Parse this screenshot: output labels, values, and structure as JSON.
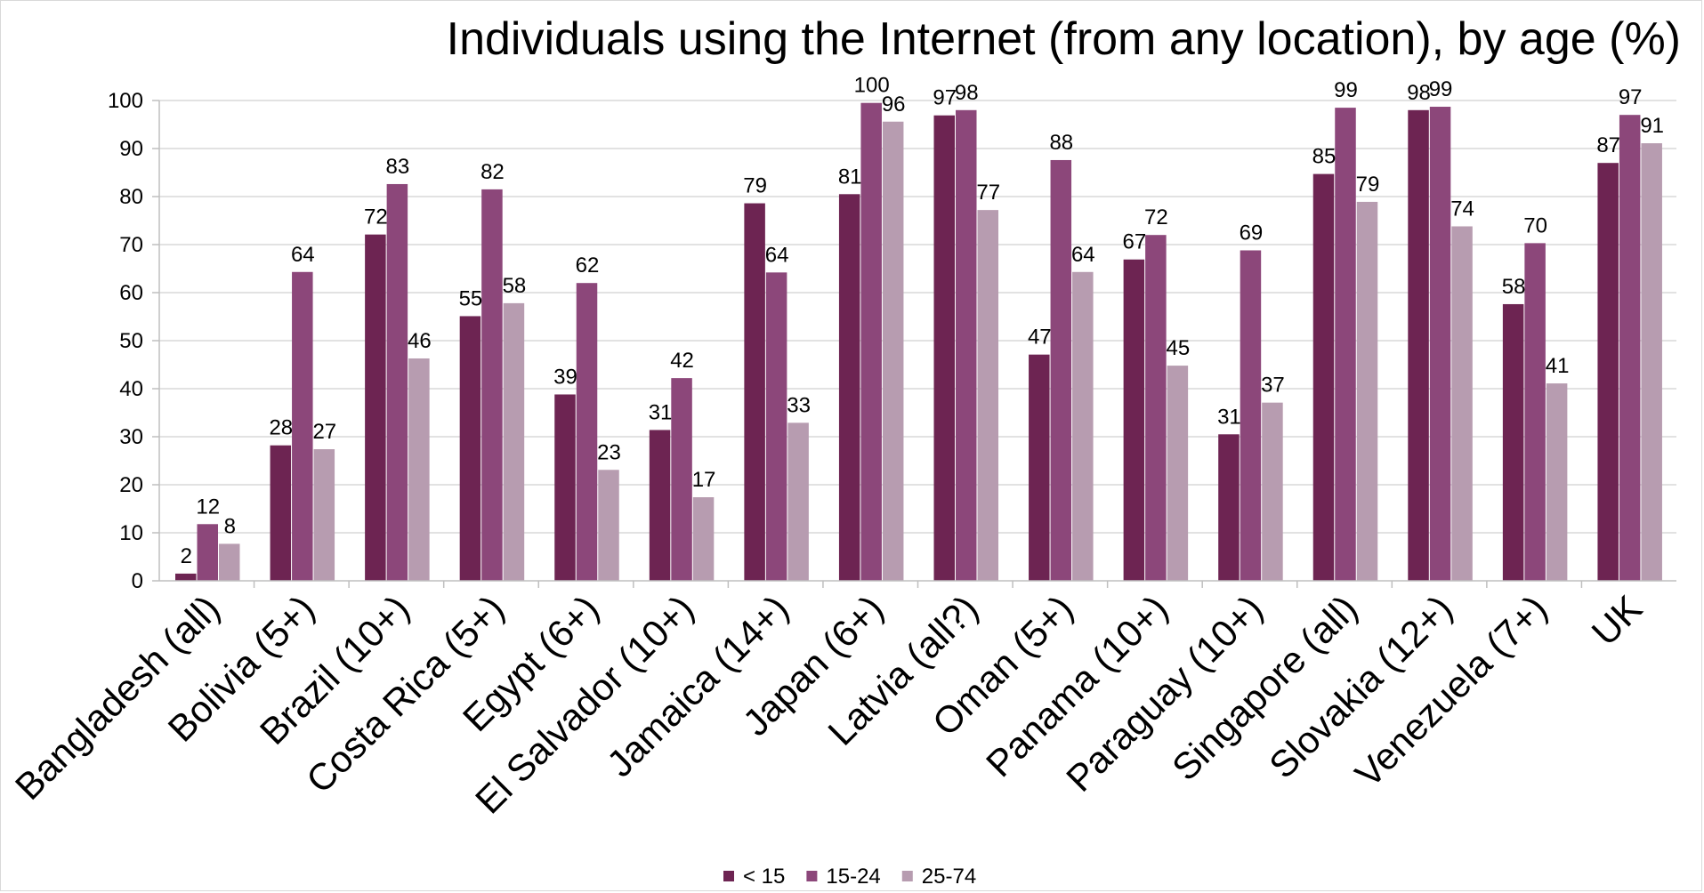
{
  "chart_data": {
    "type": "bar",
    "title": "Individuals using the Internet (from any location), by age (%)",
    "xlabel": "",
    "ylabel": "",
    "ylim": [
      0,
      100
    ],
    "yticks": [
      0,
      10,
      20,
      30,
      40,
      50,
      60,
      70,
      80,
      90,
      100
    ],
    "grid": "horizontal",
    "legend_position": "bottom",
    "categories": [
      "Bangladesh (all)",
      "Bolivia (5+)",
      "Brazil (10+)",
      "Costa Rica (5+)",
      "Egypt (6+)",
      "El Salvador (10+)",
      "Jamaica (14+)",
      "Japan (6+)",
      "Latvia (all?)",
      "Oman (5+)",
      "Panama (10+)",
      "Paraguay (10+)",
      "Singapore (all)",
      "Slovakia (12+)",
      "Venezuela (7+)",
      "UK"
    ],
    "series": [
      {
        "name": "< 15",
        "color": "#6d2452",
        "values": [
          1.5,
          28.2,
          72.1,
          55.1,
          38.8,
          31.4,
          78.6,
          80.5,
          96.9,
          47.1,
          66.9,
          30.5,
          84.7,
          98.0,
          57.6,
          87.0
        ],
        "labels": [
          "2",
          "28",
          "72",
          "55",
          "39",
          "31",
          "79",
          "81",
          "97",
          "47",
          "67",
          "31",
          "85",
          "98",
          "58",
          "87"
        ]
      },
      {
        "name": "15-24",
        "color": "#8c477a",
        "values": [
          11.8,
          64.3,
          82.6,
          81.5,
          62.0,
          42.2,
          64.2,
          99.5,
          98.0,
          87.6,
          72.0,
          68.8,
          98.5,
          98.7,
          70.3,
          97.0
        ],
        "labels": [
          "12",
          "64",
          "83",
          "82",
          "62",
          "42",
          "64",
          "100",
          "98",
          "88",
          "72",
          "69",
          "99",
          "99",
          "70",
          "97"
        ]
      },
      {
        "name": "25-74",
        "color": "#b79cb0",
        "values": [
          7.7,
          27.4,
          46.3,
          57.8,
          23.1,
          17.4,
          32.9,
          95.6,
          77.2,
          64.3,
          44.8,
          37.1,
          78.9,
          73.8,
          41.1,
          91.1
        ],
        "labels": [
          "8",
          "27",
          "46",
          "58",
          "23",
          "17",
          "33",
          "96",
          "77",
          "64",
          "45",
          "37",
          "79",
          "74",
          "41",
          "91"
        ]
      }
    ]
  }
}
